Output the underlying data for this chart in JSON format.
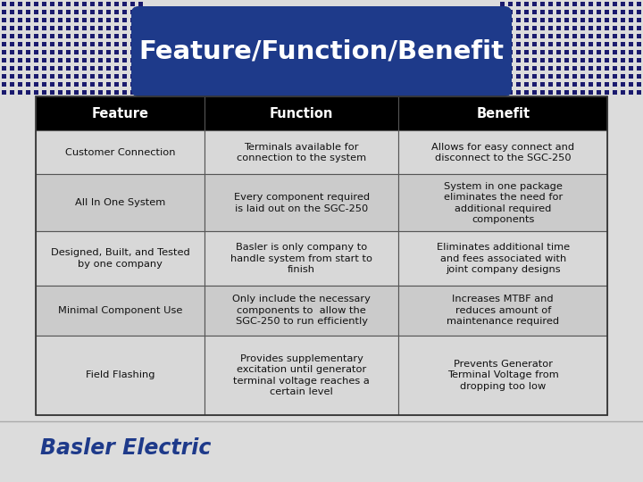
{
  "title": "Feature/Function/Benefit",
  "title_bg_color": "#1E3A8A",
  "title_text_color": "#FFFFFF",
  "header_bg_color": "#000000",
  "header_text_color": "#FFFFFF",
  "page_bg": "#DCDCDC",
  "branding_text": "Basler Electric",
  "branding_color": "#1E3A8A",
  "headers": [
    "Feature",
    "Function",
    "Benefit"
  ],
  "rows": [
    [
      "Customer Connection",
      "Terminals available for\nconnection to the system",
      "Allows for easy connect and\ndisconnect to the SGC-250"
    ],
    [
      "All In One System",
      "Every component required\nis laid out on the SGC-250",
      "System in one package\neliminates the need for\nadditional required\ncomponents"
    ],
    [
      "Designed, Built, and Tested\nby one company",
      "Basler is only company to\nhandle system from start to\nfinish",
      "Eliminates additional time\nand fees associated with\njoint company designs"
    ],
    [
      "Minimal Component Use",
      "Only include the necessary\ncomponents to  allow the\nSGC-250 to run efficiently",
      "Increases MTBF and\nreduces amount of\nmaintenance required"
    ],
    [
      "Field Flashing",
      "Provides supplementary\nexcitation until generator\nterminal voltage reaches a\ncertain level",
      "Prevents Generator\nTerminal Voltage from\ndropping too low"
    ]
  ],
  "figsize": [
    7.2,
    5.4
  ],
  "dpi": 100
}
